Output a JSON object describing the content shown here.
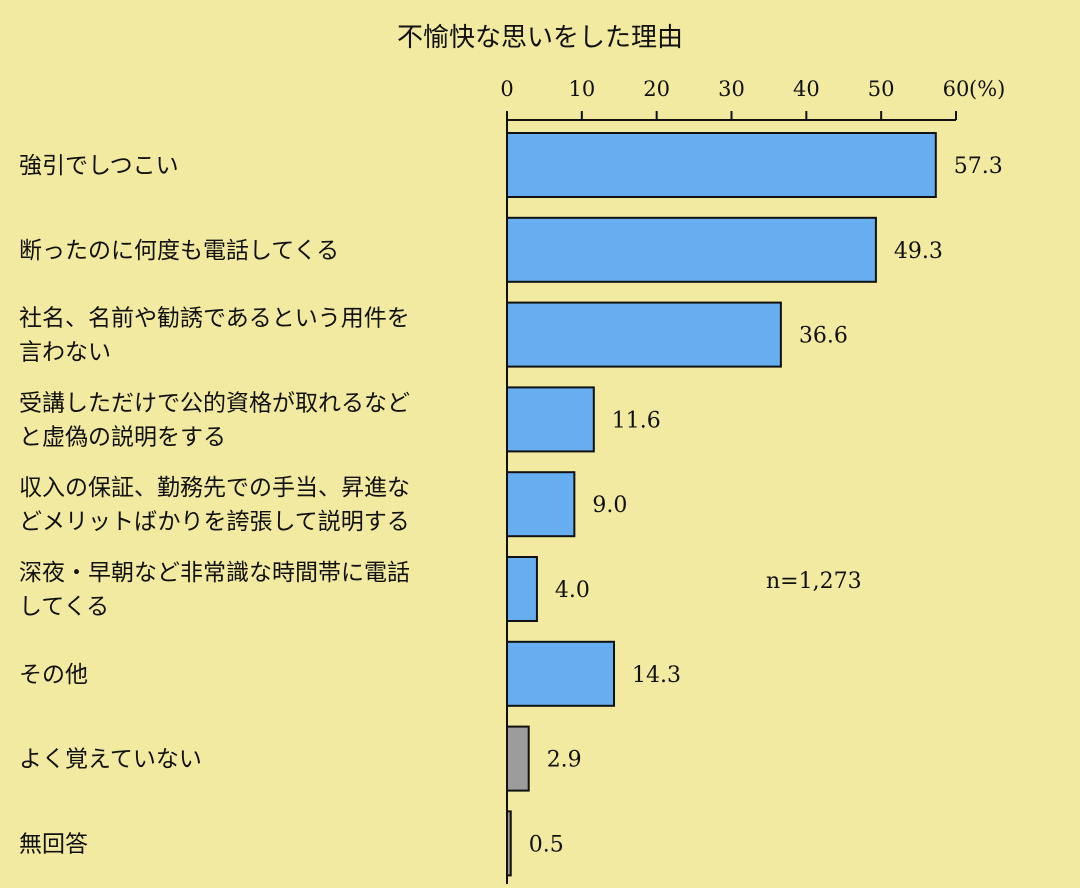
{
  "chart_data": {
    "type": "bar",
    "orientation": "horizontal",
    "title": "不愉快な思いをした理由",
    "unit": "(%)",
    "note": "n=1,273",
    "xlim": [
      0,
      60
    ],
    "ticks": [
      0,
      10,
      20,
      30,
      40,
      50,
      60
    ],
    "grid": false,
    "categories": [
      [
        "強引でしつこい"
      ],
      [
        "断ったのに何度も電話してくる"
      ],
      [
        "社名、名前や勧誘であるという用件を",
        "言わない"
      ],
      [
        "受講しただけで公的資格が取れるなど",
        "と虚偽の説明をする"
      ],
      [
        "収入の保証、勤務先での手当、昇進な",
        "どメリットばかりを誇張して説明する"
      ],
      [
        "深夜・早朝など非常識な時間帯に電話",
        "してくる"
      ],
      [
        "その他"
      ],
      [
        "よく覚えていない"
      ],
      [
        "無回答"
      ]
    ],
    "values": [
      57.3,
      49.3,
      36.6,
      11.6,
      9.0,
      4.0,
      14.3,
      2.9,
      0.5
    ],
    "value_labels": [
      "57.3",
      "49.3",
      "36.6",
      "11.6",
      "9.0",
      "4.0",
      "14.3",
      "2.9",
      "0.5"
    ],
    "colors": {
      "background": "#f1eaa0",
      "bar": "#66aef0",
      "bar_muted": "#9c9c9c",
      "stroke": "#111111"
    },
    "muted_indices": [
      7,
      8
    ]
  }
}
